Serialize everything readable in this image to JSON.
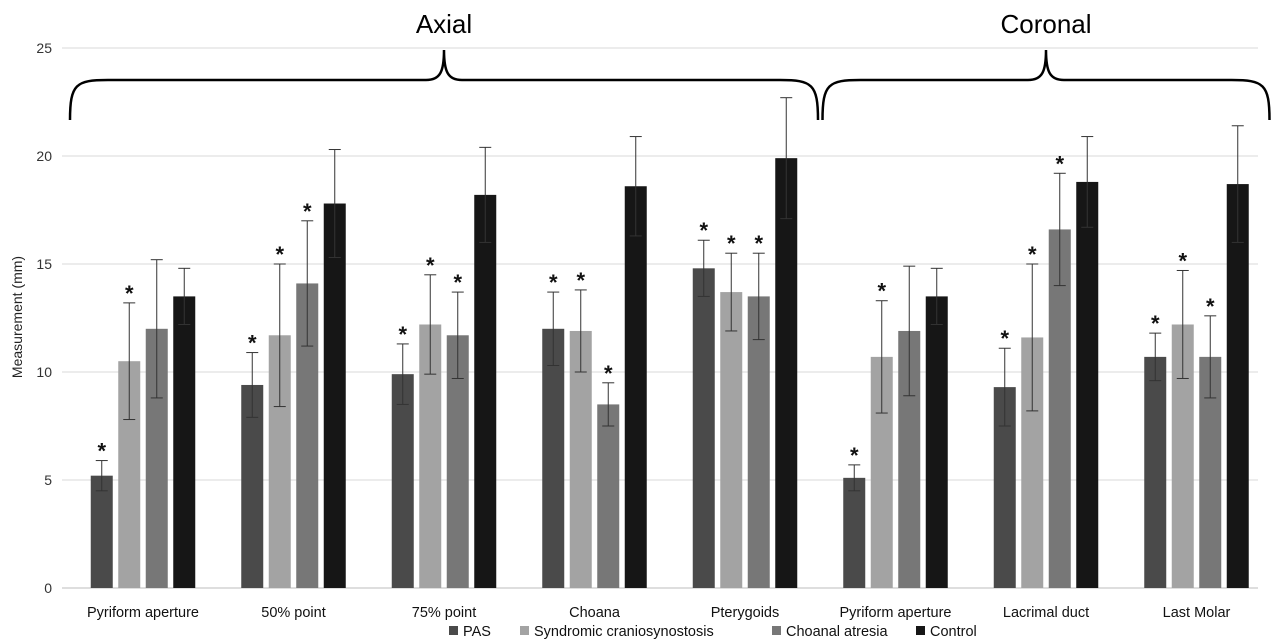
{
  "chart_data": {
    "type": "bar",
    "ylabel": "Measurement (mm)",
    "ylim": [
      0,
      25
    ],
    "yticks": [
      0,
      5,
      10,
      15,
      20,
      25
    ],
    "grid": true,
    "legend_position": "bottom",
    "groups": [
      {
        "label": "Axial",
        "categories": [
          0,
          4
        ]
      },
      {
        "label": "Coronal",
        "categories": [
          5,
          7
        ]
      }
    ],
    "categories": [
      "Pyriform aperture",
      "50% point",
      "75% point",
      "Choana",
      "Pterygoids",
      "Pyriform aperture",
      "Lacrimal duct",
      "Last Molar"
    ],
    "significance_marker": "*",
    "series": [
      {
        "name": "PAS",
        "color": "#4a4a4a",
        "values": [
          5.2,
          9.4,
          9.9,
          12.0,
          14.8,
          5.1,
          9.3,
          10.7
        ],
        "error_low": [
          4.5,
          7.9,
          8.5,
          10.3,
          13.5,
          4.5,
          7.5,
          9.6
        ],
        "error_high": [
          5.9,
          10.9,
          11.3,
          13.7,
          16.1,
          5.7,
          11.1,
          11.8
        ],
        "significant": [
          true,
          true,
          true,
          true,
          true,
          true,
          true,
          true
        ]
      },
      {
        "name": "Syndromic craniosynostosis",
        "color": "#a3a3a3",
        "values": [
          10.5,
          11.7,
          12.2,
          11.9,
          13.7,
          10.7,
          11.6,
          12.2
        ],
        "error_low": [
          7.8,
          8.4,
          9.9,
          10.0,
          11.9,
          8.1,
          8.2,
          9.7
        ],
        "error_high": [
          13.2,
          15.0,
          14.5,
          13.8,
          15.5,
          13.3,
          15.0,
          14.7
        ],
        "significant": [
          true,
          true,
          true,
          true,
          true,
          true,
          true,
          true
        ]
      },
      {
        "name": "Choanal atresia",
        "color": "#777777",
        "values": [
          12.0,
          14.1,
          11.7,
          8.5,
          13.5,
          11.9,
          16.6,
          10.7
        ],
        "error_low": [
          8.8,
          11.2,
          9.7,
          7.5,
          11.5,
          8.9,
          14.0,
          8.8
        ],
        "error_high": [
          15.2,
          17.0,
          13.7,
          9.5,
          15.5,
          14.9,
          19.2,
          12.6
        ],
        "significant": [
          false,
          true,
          true,
          true,
          true,
          false,
          true,
          true
        ]
      },
      {
        "name": "Control",
        "color": "#161616",
        "values": [
          13.5,
          17.8,
          18.2,
          18.6,
          19.9,
          13.5,
          18.8,
          18.7
        ],
        "error_low": [
          12.2,
          15.3,
          16.0,
          16.3,
          17.1,
          12.2,
          16.7,
          16.0
        ],
        "error_high": [
          14.8,
          20.3,
          20.4,
          20.9,
          22.7,
          14.8,
          20.9,
          21.4
        ],
        "significant": [
          false,
          false,
          false,
          false,
          false,
          false,
          false,
          false
        ]
      }
    ]
  }
}
